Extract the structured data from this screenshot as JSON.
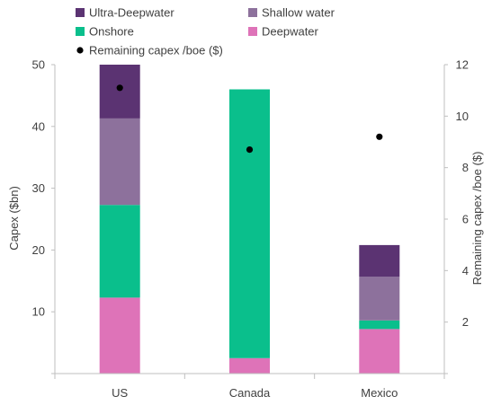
{
  "chart_data": {
    "type": "bar",
    "stacked": true,
    "categories": [
      "US",
      "Canada",
      "Mexico"
    ],
    "series": [
      {
        "name": "Deepwater",
        "color": "#DE73B8",
        "values": [
          12.3,
          2.5,
          7.2
        ]
      },
      {
        "name": "Onshore",
        "color": "#0ABF8C",
        "values": [
          15.0,
          43.5,
          1.4
        ]
      },
      {
        "name": "Shallow water",
        "color": "#8D719C",
        "values": [
          14.0,
          0,
          7.1
        ]
      },
      {
        "name": "Ultra-Deepwater",
        "color": "#5B3372",
        "values": [
          8.7,
          0,
          5.1
        ]
      }
    ],
    "scatter_series": {
      "name": "Remaining capex /boe ($)",
      "color": "#000000",
      "axis": "right",
      "values": [
        11.1,
        8.7,
        9.2
      ]
    },
    "ylabel": "Capex ($bn)",
    "ylabel_right": "Remaining capex /boe ($)",
    "ylim": [
      0,
      50
    ],
    "ylim_right": [
      0,
      12
    ],
    "yticks": [
      "10",
      "20",
      "30",
      "40",
      "50"
    ],
    "yticks_right": [
      "2",
      "4",
      "6",
      "8",
      "10",
      "12"
    ],
    "legend": {
      "placement": "top",
      "entries": [
        {
          "label": "Ultra-Deepwater",
          "marker": "square",
          "color": "#5B3372"
        },
        {
          "label": "Shallow water",
          "marker": "square",
          "color": "#8D719C"
        },
        {
          "label": "Onshore",
          "marker": "square",
          "color": "#0ABF8C"
        },
        {
          "label": "Deepwater",
          "marker": "square",
          "color": "#DE73B8"
        },
        {
          "label": "Remaining capex /boe ($)",
          "marker": "dot",
          "color": "#000000"
        }
      ]
    },
    "grid": false
  }
}
